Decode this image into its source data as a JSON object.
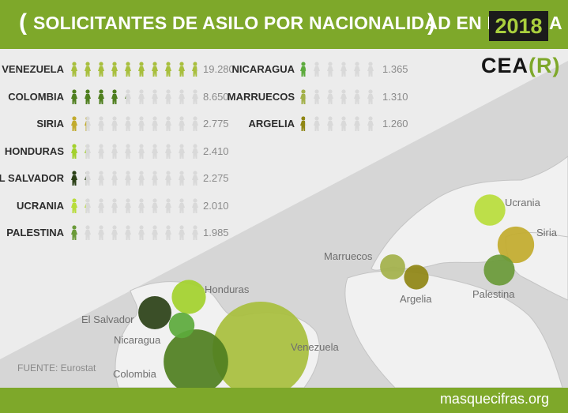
{
  "header": {
    "title": "SOLICITANTES DE ASILO POR NACIONALIDAD EN ESPAÑA",
    "bracket_open": "(",
    "bracket_close": ")",
    "year": "2018"
  },
  "logo": {
    "text_main": "CEA",
    "text_accent": "(R)"
  },
  "footer": {
    "source": "FUENTE: Eurostat",
    "site": "masquecifras.org"
  },
  "colors": {
    "header": "#7ea82a",
    "icon_inactive": "#d9d9d9",
    "year_text": "#a9cf3d",
    "Venezuela": "#a8bf3d",
    "Colombia": "#4f7f1f",
    "Siria": "#c2ab2c",
    "Honduras": "#a3d12c",
    "El Salvador": "#2b4117",
    "Ucrania": "#b8dd3b",
    "Palestina": "#6a9a38",
    "Nicaragua": "#5caa3c",
    "Marruecos": "#a3b14a",
    "Argelia": "#8f8613"
  },
  "chart_data": {
    "type": "pictogram",
    "title": "SOLICITANTES DE ASILO POR NACIONALIDAD EN ESPAÑA",
    "year": "2018",
    "source": "FUENTE: Eurostat",
    "icons_per_row": 10,
    "icon_unit": 2000,
    "series": [
      {
        "country": "VENEZUELA",
        "map_label": "Venezuela",
        "value": 19280,
        "display": "19.280"
      },
      {
        "country": "COLOMBIA",
        "map_label": "Colombia",
        "value": 8650,
        "display": "8.650"
      },
      {
        "country": "SIRIA",
        "map_label": "Siria",
        "value": 2775,
        "display": "2.775"
      },
      {
        "country": "HONDURAS",
        "map_label": "Honduras",
        "value": 2410,
        "display": "2.410"
      },
      {
        "country": "EL SALVADOR",
        "map_label": "El Salvador",
        "value": 2275,
        "display": "2.275"
      },
      {
        "country": "UCRANIA",
        "map_label": "Ucrania",
        "value": 2010,
        "display": "2.010"
      },
      {
        "country": "PALESTINA",
        "map_label": "Palestina",
        "value": 1985,
        "display": "1.985"
      },
      {
        "country": "NICARAGUA",
        "map_label": "Nicaragua",
        "value": 1365,
        "display": "1.365"
      },
      {
        "country": "MARRUECOS",
        "map_label": "Marruecos",
        "value": 1310,
        "display": "1.310"
      },
      {
        "country": "ARGELIA",
        "map_label": "Argelia",
        "value": 1260,
        "display": "1.260"
      }
    ]
  }
}
